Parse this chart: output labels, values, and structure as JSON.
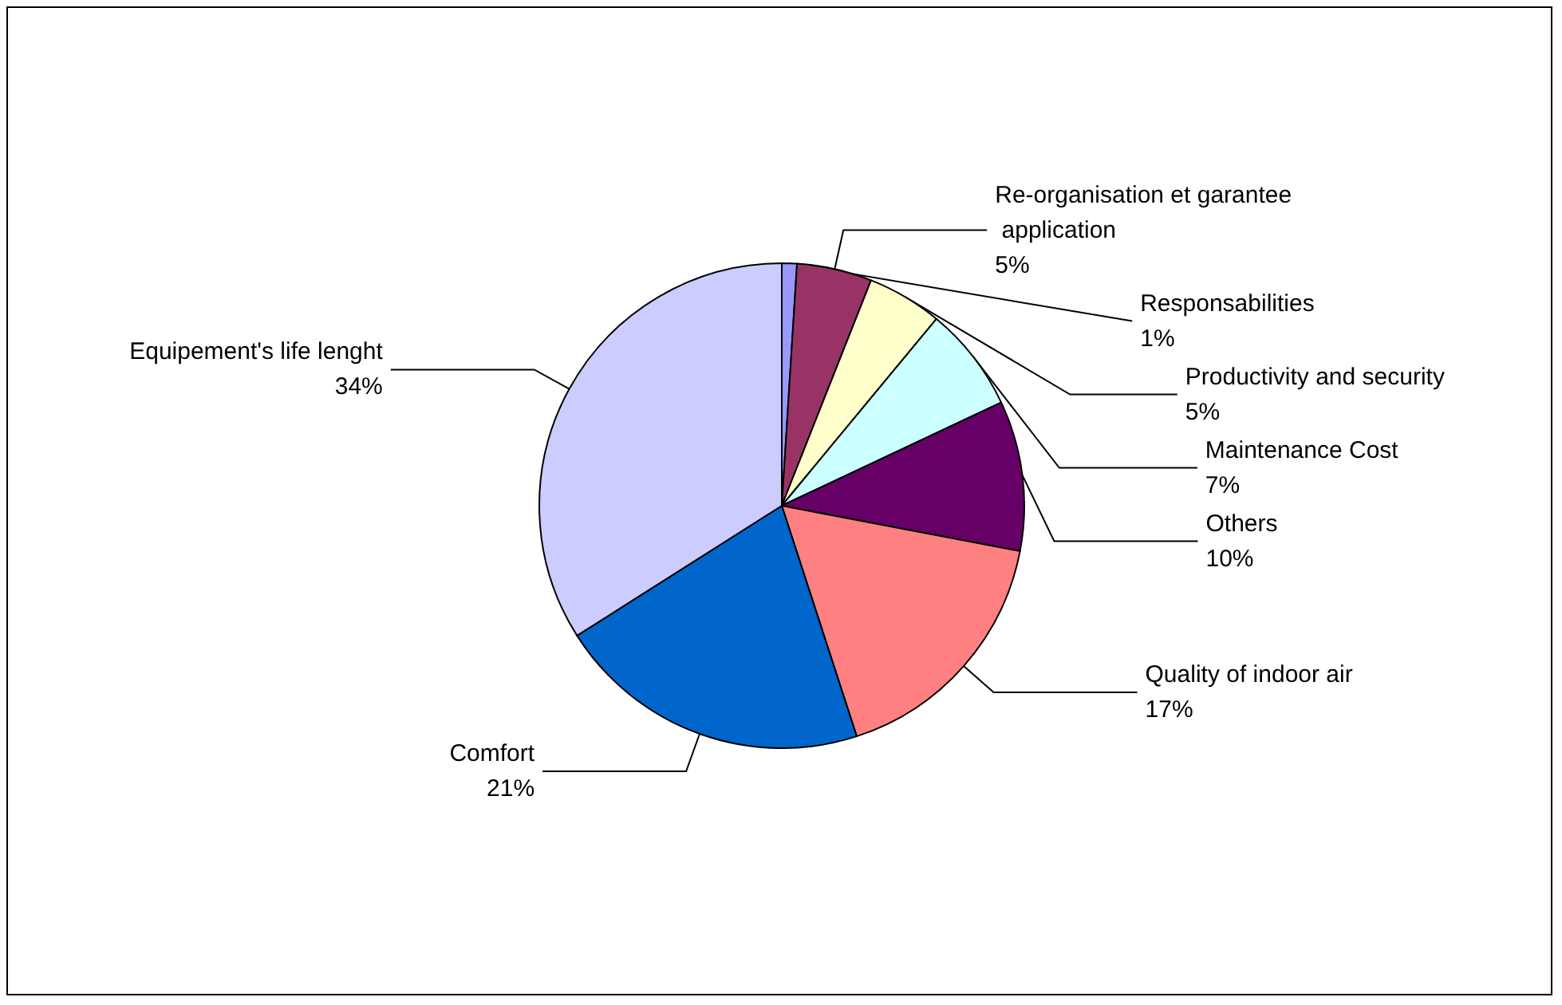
{
  "chart_data": {
    "type": "pie",
    "categories": [
      "Responsabilities",
      "Re-organisation et garantee application",
      "Productivity and security",
      "Maintenance Cost",
      "Others",
      "Quality of indoor air",
      "Comfort",
      "Equipement's life lenght"
    ],
    "values": [
      1,
      5,
      5,
      7,
      10,
      17,
      21,
      34
    ],
    "value_labels": [
      "1%",
      "5%",
      "5%",
      "7%",
      "10%",
      "17%",
      "21%",
      "34%"
    ],
    "colors": [
      "#9999ff",
      "#993366",
      "#ffffcc",
      "#ccffff",
      "#660066",
      "#ff8080",
      "#0066cc",
      "#ccccff"
    ],
    "legend": false
  }
}
